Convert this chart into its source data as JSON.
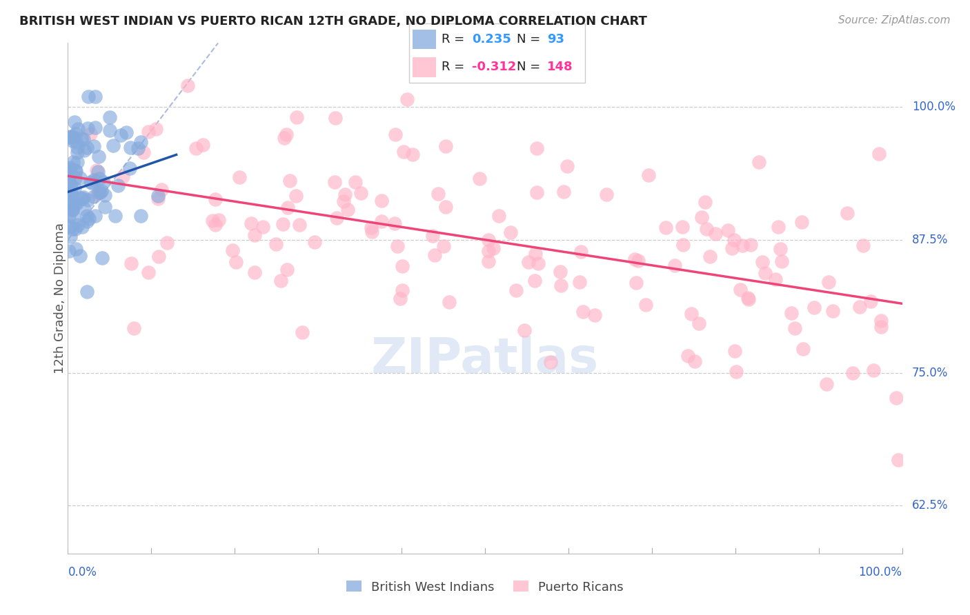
{
  "title": "BRITISH WEST INDIAN VS PUERTO RICAN 12TH GRADE, NO DIPLOMA CORRELATION CHART",
  "source": "Source: ZipAtlas.com",
  "ylabel": "12th Grade, No Diploma",
  "legend_r_blue": "0.235",
  "legend_n_blue": "93",
  "legend_r_pink": "-0.312",
  "legend_n_pink": "148",
  "ytick_labels": [
    "62.5%",
    "75.0%",
    "87.5%",
    "100.0%"
  ],
  "ytick_values": [
    0.625,
    0.75,
    0.875,
    1.0
  ],
  "blue_color": "#85AADD",
  "pink_color": "#FFB3C6",
  "blue_line_color": "#2255AA",
  "pink_line_color": "#EE4477",
  "watermark": "ZIPatlas",
  "ref_line_color": "#AABBDD",
  "grid_color": "#CCCCCC",
  "title_color": "#222222",
  "source_color": "#999999",
  "axis_label_color": "#3366CC",
  "ylabel_color": "#555555",
  "legend_text_color": "#222222",
  "legend_blue_val_color": "#3399FF",
  "legend_pink_val_color": "#FF3399",
  "ylim_min": 0.58,
  "ylim_max": 1.06,
  "xlim_min": 0.0,
  "xlim_max": 1.0,
  "pink_trend_x0": 0.0,
  "pink_trend_y0": 0.935,
  "pink_trend_x1": 1.0,
  "pink_trend_y1": 0.815,
  "blue_trend_x0": 0.0,
  "blue_trend_y0": 0.92,
  "blue_trend_x1": 0.13,
  "blue_trend_y1": 0.955,
  "ref_line_x0": 0.0,
  "ref_line_y0": 0.875,
  "ref_line_x1": 0.18,
  "ref_line_y1": 1.06
}
